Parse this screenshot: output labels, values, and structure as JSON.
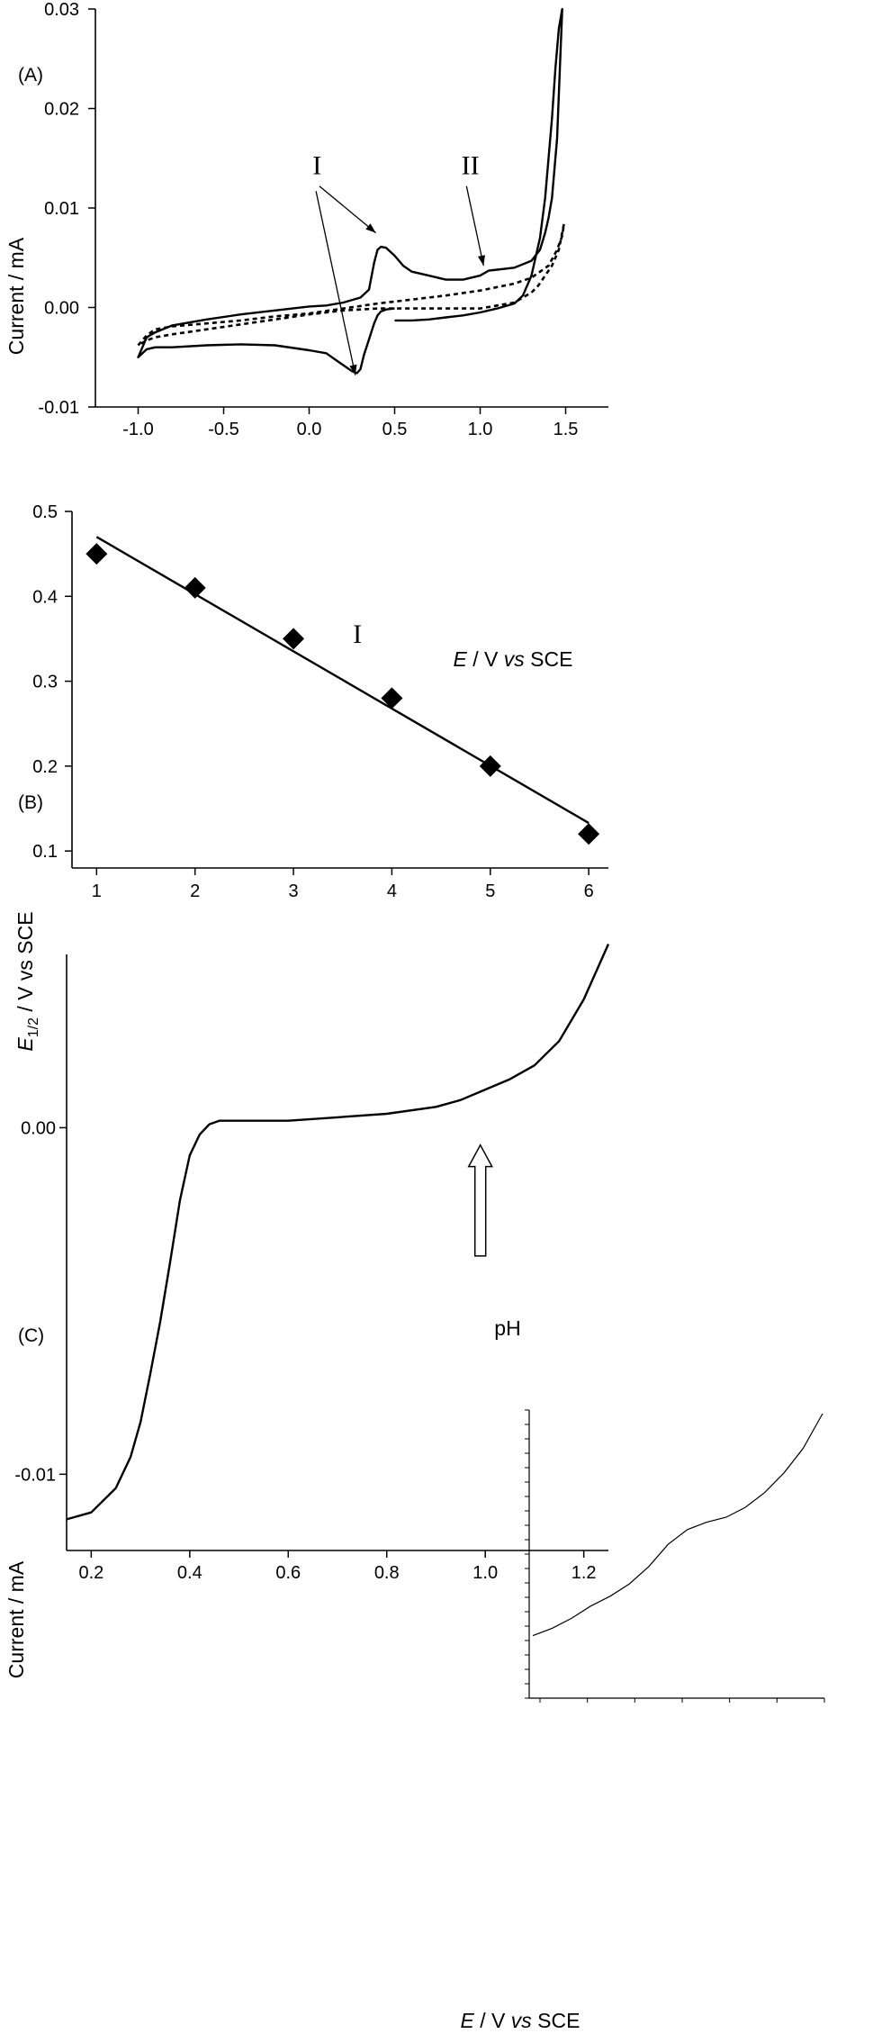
{
  "chart_data": [
    {
      "panel_label": "(A)",
      "type": "line",
      "xlabel_italic": "E",
      "xlabel_middle": " / V ",
      "xlabel_italic2": "vs",
      "xlabel_end": " SCE",
      "ylabel": "Current / mA",
      "xlim": [
        -1.25,
        1.75
      ],
      "ylim": [
        -0.01,
        0.03
      ],
      "xticks": [
        -1.0,
        -0.5,
        0.0,
        0.5,
        1.0,
        1.5
      ],
      "xtick_labels": [
        "-1.0",
        "-0.5",
        "0.0",
        "0.5",
        "1.0",
        "1.5"
      ],
      "yticks": [
        -0.01,
        0.0,
        0.01,
        0.02,
        0.03
      ],
      "ytick_labels": [
        "-0.01",
        "0.00",
        "0.01",
        "0.02",
        "0.03"
      ],
      "annotations": [
        {
          "text": "I",
          "x": 0.02,
          "y": 0.0134
        },
        {
          "text": "II",
          "x": 0.89,
          "y": 0.0134
        }
      ],
      "arrows": [
        {
          "from": [
            0.06,
            0.0122
          ],
          "to": [
            0.39,
            0.0075
          ]
        },
        {
          "from": [
            0.04,
            0.0117
          ],
          "to": [
            0.27,
            -0.0068
          ]
        },
        {
          "from": [
            0.92,
            0.0122
          ],
          "to": [
            1.02,
            0.0042
          ]
        }
      ],
      "series": [
        {
          "style": "solid",
          "x": [
            0.5,
            0.6,
            0.7,
            0.8,
            0.9,
            1.0,
            1.1,
            1.2,
            1.25,
            1.3,
            1.35,
            1.38,
            1.4,
            1.42,
            1.44,
            1.46,
            1.48,
            1.45,
            1.42,
            1.4,
            1.38,
            1.35,
            1.3,
            1.2,
            1.1,
            1.05,
            1.0,
            0.9,
            0.8,
            0.7,
            0.6,
            0.55,
            0.5,
            0.45,
            0.42,
            0.4,
            0.38,
            0.35,
            0.3,
            0.2,
            0.1,
            0.0,
            -0.2,
            -0.4,
            -0.6,
            -0.8,
            -0.9,
            -0.95,
            -1.0,
            -0.95,
            -0.9,
            -0.8,
            -0.6,
            -0.4,
            -0.2,
            0.0,
            0.1,
            0.15,
            0.2,
            0.25,
            0.28,
            0.3,
            0.32,
            0.35,
            0.38,
            0.4,
            0.42,
            0.45,
            0.5
          ],
          "y": [
            -0.0013,
            -0.0013,
            -0.0012,
            -0.001,
            -0.0008,
            -0.0005,
            -0.0001,
            0.0004,
            0.0012,
            0.0032,
            0.007,
            0.011,
            0.015,
            0.019,
            0.024,
            0.028,
            0.03,
            0.017,
            0.011,
            0.009,
            0.0075,
            0.0058,
            0.0047,
            0.004,
            0.0038,
            0.0037,
            0.0032,
            0.0028,
            0.0028,
            0.0032,
            0.0036,
            0.0042,
            0.0052,
            0.006,
            0.0061,
            0.0058,
            0.0045,
            0.0018,
            0.001,
            0.0005,
            0.0002,
            0.0001,
            -0.0003,
            -0.0007,
            -0.0012,
            -0.0018,
            -0.0025,
            -0.003,
            -0.005,
            -0.0042,
            -0.004,
            -0.004,
            -0.0038,
            -0.0037,
            -0.0038,
            -0.0043,
            -0.0046,
            -0.0052,
            -0.0058,
            -0.0064,
            -0.0066,
            -0.0062,
            -0.0048,
            -0.0032,
            -0.0016,
            -0.0008,
            -0.0004,
            -0.0002,
            -0.0001
          ]
        },
        {
          "style": "dashed",
          "x": [
            -1.0,
            -0.95,
            -0.9,
            -0.8,
            -0.6,
            -0.4,
            -0.2,
            0.0,
            0.2,
            0.4,
            0.6,
            0.8,
            1.0,
            1.2,
            1.3,
            1.4,
            1.45,
            1.48,
            1.49,
            1.46,
            1.42,
            1.38,
            1.34,
            1.3,
            1.2,
            1.0,
            0.8,
            0.6,
            0.4,
            0.2,
            0.0,
            -0.2,
            -0.4,
            -0.6,
            -0.8,
            -0.9,
            -0.95,
            -1.0
          ],
          "y": [
            -0.0038,
            -0.0028,
            -0.0022,
            -0.0019,
            -0.0016,
            -0.0013,
            -0.0009,
            -0.0006,
            -0.0001,
            0.0004,
            0.0008,
            0.0012,
            0.0017,
            0.0024,
            0.003,
            0.0042,
            0.0058,
            0.0072,
            0.0084,
            0.0058,
            0.0042,
            0.0032,
            0.0022,
            0.0015,
            0.0005,
            -0.0001,
            -0.0001,
            -0.0001,
            -0.0001,
            -0.0003,
            -0.0007,
            -0.0012,
            -0.0017,
            -0.0022,
            -0.0027,
            -0.003,
            -0.0033,
            -0.0038
          ]
        }
      ]
    },
    {
      "panel_label": "(B)",
      "type": "scatter",
      "xlabel": "pH",
      "ylabel_main": "E",
      "ylabel_sub": "1/2",
      "ylabel_rest": " / V vs SCE",
      "xlim": [
        0.75,
        6.2
      ],
      "ylim": [
        0.08,
        0.5
      ],
      "xticks": [
        1,
        2,
        3,
        4,
        5,
        6
      ],
      "xtick_labels": [
        "1",
        "2",
        "3",
        "4",
        "5",
        "6"
      ],
      "yticks": [
        0.1,
        0.2,
        0.3,
        0.4,
        0.5
      ],
      "ytick_labels": [
        "0.1",
        "0.2",
        "0.3",
        "0.4",
        "0.5"
      ],
      "annotation": {
        "text": "I",
        "x": 3.65,
        "y": 0.345
      },
      "points": [
        {
          "x": 1,
          "y": 0.45
        },
        {
          "x": 2,
          "y": 0.41
        },
        {
          "x": 3,
          "y": 0.35
        },
        {
          "x": 4,
          "y": 0.28
        },
        {
          "x": 5,
          "y": 0.2
        },
        {
          "x": 6,
          "y": 0.12
        }
      ],
      "fit_line": {
        "x": [
          1,
          6
        ],
        "y": [
          0.47,
          0.133
        ]
      }
    },
    {
      "panel_label": "(C)",
      "type": "line",
      "xlabel_italic": "E",
      "xlabel_middle": " / V ",
      "xlabel_italic2": "vs",
      "xlabel_end": " SCE",
      "ylabel": "Current / mA",
      "xlim": [
        0.15,
        1.25
      ],
      "ylim": [
        -0.0122,
        0.005
      ],
      "xticks": [
        0.2,
        0.4,
        0.6,
        0.8,
        1.0,
        1.2
      ],
      "xtick_labels": [
        "0.2",
        "0.4",
        "0.6",
        "0.8",
        "1.0",
        "1.2"
      ],
      "yticks": [
        0.0,
        -0.01
      ],
      "ytick_labels": [
        "0.00",
        "-0.01"
      ],
      "series": [
        {
          "style": "solid",
          "x": [
            0.15,
            0.2,
            0.25,
            0.28,
            0.3,
            0.32,
            0.34,
            0.36,
            0.38,
            0.4,
            0.42,
            0.44,
            0.46,
            0.5,
            0.6,
            0.7,
            0.8,
            0.9,
            0.95,
            1.0,
            1.05,
            1.1,
            1.15,
            1.2,
            1.25
          ],
          "y": [
            -0.0113,
            -0.0111,
            -0.0104,
            -0.0095,
            -0.0085,
            -0.0071,
            -0.0056,
            -0.0039,
            -0.0021,
            -0.0008,
            -0.0002,
            0.0001,
            0.0002,
            0.0002,
            0.0002,
            0.0003,
            0.0004,
            0.0006,
            0.0008,
            0.0011,
            0.0014,
            0.0018,
            0.0025,
            0.0037,
            0.0053
          ]
        }
      ],
      "arrow": {
        "x": 0.99,
        "y_tail": -0.0037,
        "y_head": -0.0005,
        "style": "hollow-up"
      },
      "inset": {
        "series": [
          0.1,
          0.13,
          0.17,
          0.22,
          0.26,
          0.31,
          0.38,
          0.47,
          0.53,
          0.56,
          0.58,
          0.62,
          0.68,
          0.76,
          0.86,
          1.0
        ]
      }
    }
  ]
}
